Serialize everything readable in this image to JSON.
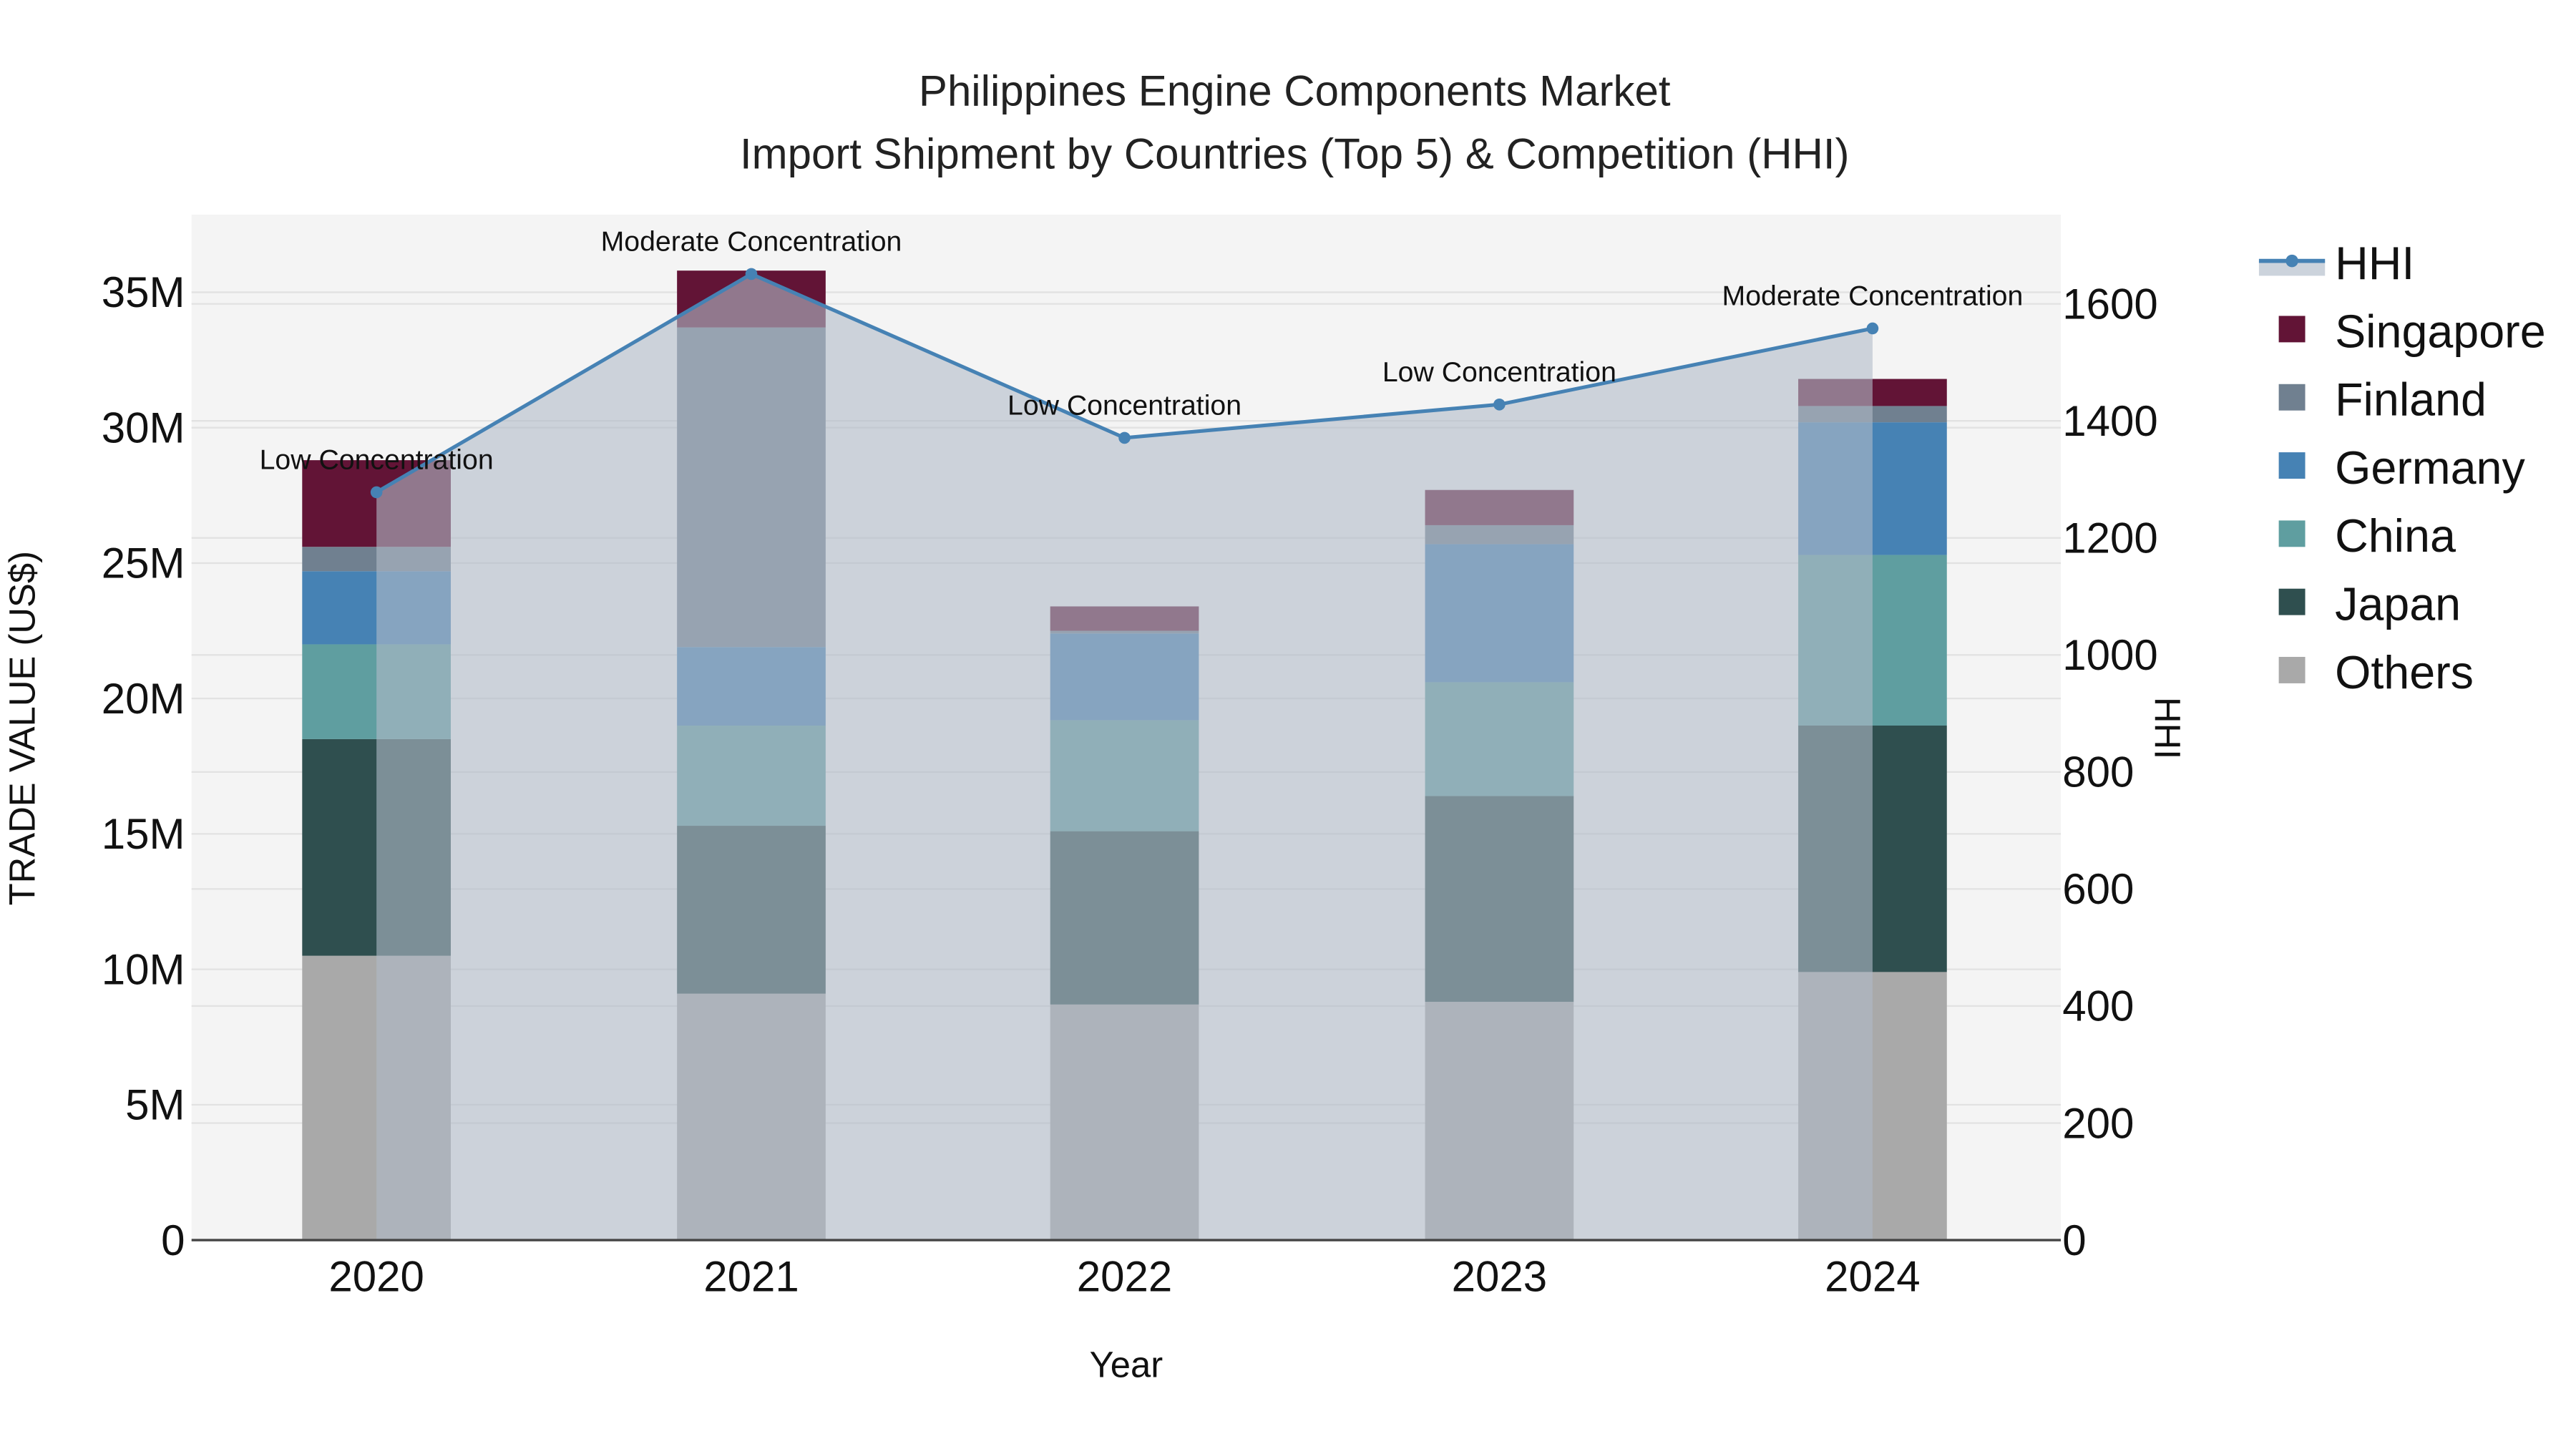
{
  "title": {
    "line1": "Philippines Engine Components Market",
    "line2": "Import Shipment by Countries (Top 5) & Competition (HHI)"
  },
  "axes": {
    "x_title": "Year",
    "y_left_title": "TRADE VALUE (US$)",
    "y_right_title": "HHI",
    "y_left_ticks": [
      "0",
      "5M",
      "10M",
      "15M",
      "20M",
      "25M",
      "30M",
      "35M"
    ],
    "y_right_ticks": [
      "0",
      "200",
      "400",
      "600",
      "800",
      "1000",
      "1200",
      "1400",
      "1600"
    ]
  },
  "legend": {
    "items": [
      {
        "label": "HHI",
        "type": "line",
        "color": "#4682B4"
      },
      {
        "label": "Singapore",
        "type": "box",
        "color": "#621436"
      },
      {
        "label": "Finland",
        "type": "box",
        "color": "#708090"
      },
      {
        "label": "Germany",
        "type": "box",
        "color": "#4682B4"
      },
      {
        "label": "China",
        "type": "box",
        "color": "#5F9EA0"
      },
      {
        "label": "Japan",
        "type": "box",
        "color": "#2F4F4F"
      },
      {
        "label": "Others",
        "type": "box",
        "color": "#A9A9A9"
      }
    ]
  },
  "colors": {
    "plot_bg": "#F4F4F4",
    "grid": "#E2E2E2",
    "hhi_line": "#4682B4",
    "hhi_fill": "rgba(176,186,200,0.6)"
  },
  "chart_data": {
    "type": "bar",
    "stacked": true,
    "title": "Philippines Engine Components Market — Import Shipment by Countries (Top 5) & Competition (HHI)",
    "xlabel": "Year",
    "ylabel": "TRADE VALUE (US$)",
    "y2label": "HHI",
    "categories": [
      "2020",
      "2021",
      "2022",
      "2023",
      "2024"
    ],
    "ylim": [
      0,
      37800000
    ],
    "y2lim": [
      0,
      1750
    ],
    "series": [
      {
        "name": "Others",
        "color": "#A9A9A9",
        "values": [
          10500000,
          9100000,
          8700000,
          8800000,
          9900000
        ]
      },
      {
        "name": "Japan",
        "color": "#2F4F4F",
        "values": [
          8000000,
          6200000,
          6400000,
          7600000,
          9100000
        ]
      },
      {
        "name": "China",
        "color": "#5F9EA0",
        "values": [
          3500000,
          3700000,
          4100000,
          4200000,
          6300000
        ]
      },
      {
        "name": "Germany",
        "color": "#4682B4",
        "values": [
          2700000,
          2900000,
          3200000,
          5100000,
          4900000
        ]
      },
      {
        "name": "Finland",
        "color": "#708090",
        "values": [
          900000,
          11800000,
          100000,
          700000,
          600000
        ]
      },
      {
        "name": "Singapore",
        "color": "#621436",
        "values": [
          3200000,
          2100000,
          900000,
          1300000,
          1000000
        ]
      }
    ],
    "line_series": {
      "name": "HHI",
      "axis": "y2",
      "type": "line+area",
      "color": "#4682B4",
      "values": [
        1278,
        1651,
        1371,
        1428,
        1558
      ]
    },
    "annotations": [
      {
        "x": "2020",
        "text": "Low Concentration"
      },
      {
        "x": "2021",
        "text": "Moderate Concentration"
      },
      {
        "x": "2022",
        "text": "Low Concentration"
      },
      {
        "x": "2023",
        "text": "Low Concentration"
      },
      {
        "x": "2024",
        "text": "Moderate Concentration"
      }
    ],
    "grid": true,
    "legend_position": "right"
  }
}
